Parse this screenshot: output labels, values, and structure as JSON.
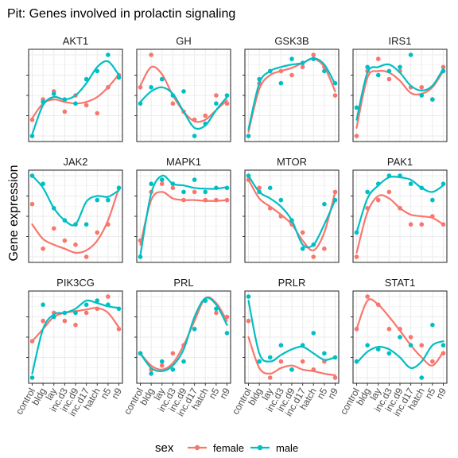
{
  "chart_data": {
    "type": "scatter",
    "title": "Pit: Genes involved in prolactin signaling",
    "xlabel": "",
    "ylabel": "Gene expression",
    "categories": [
      "control",
      "bldg",
      "lay",
      "inc.d3",
      "inc.d9",
      "inc.d17",
      "hatch",
      "n5",
      "n9"
    ],
    "legend": {
      "title": "sex",
      "position": "bottom",
      "entries": [
        {
          "label": "female",
          "color": "#F8766D"
        },
        {
          "label": "male",
          "color": "#00BFC4"
        }
      ]
    },
    "colors": {
      "female": "#F8766D",
      "male": "#00BFC4",
      "panel_border": "#333333",
      "grid": "#ebebeb",
      "strip_bg": "#ffffff"
    },
    "grid": true,
    "y_tick_labels_shown": false,
    "panels": [
      {
        "gene": "AKT1",
        "female": {
          "points": [
            0.2,
            0.45,
            0.55,
            0.3,
            0.5,
            0.38,
            0.28,
            0.6,
            0.75
          ],
          "trend": [
            0.22,
            0.4,
            0.45,
            0.42,
            0.4,
            0.42,
            0.48,
            0.6,
            0.76
          ]
        },
        "male": {
          "points": [
            0.0,
            0.42,
            0.52,
            0.45,
            0.4,
            0.7,
            0.8,
            1.0,
            0.72
          ],
          "trend": [
            0.02,
            0.38,
            0.48,
            0.45,
            0.5,
            0.65,
            0.85,
            0.92,
            0.75
          ]
        }
      },
      {
        "gene": "GH",
        "female": {
          "points": [
            0.6,
            1.0,
            0.7,
            0.4,
            0.3,
            0.2,
            0.25,
            0.5,
            0.4
          ],
          "trend": [
            0.62,
            0.85,
            0.76,
            0.5,
            0.3,
            0.18,
            0.2,
            0.32,
            0.44
          ]
        },
        "male": {
          "points": [
            0.4,
            0.6,
            0.7,
            0.5,
            0.55,
            0.0,
            0.15,
            0.4,
            0.5
          ],
          "trend": [
            0.42,
            0.55,
            0.6,
            0.52,
            0.3,
            0.1,
            0.13,
            0.32,
            0.48
          ]
        }
      },
      {
        "gene": "GSK3B",
        "female": {
          "points": [
            0.0,
            0.65,
            0.8,
            0.8,
            0.75,
            0.85,
            1.0,
            0.85,
            0.5
          ],
          "trend": [
            0.05,
            0.58,
            0.75,
            0.8,
            0.84,
            0.9,
            0.95,
            0.85,
            0.55
          ]
        },
        "male": {
          "points": [
            0.0,
            0.7,
            0.8,
            0.65,
            0.95,
            0.9,
            0.95,
            0.8,
            0.65
          ],
          "trend": [
            0.08,
            0.65,
            0.8,
            0.85,
            0.88,
            0.9,
            0.96,
            0.88,
            0.64
          ]
        }
      },
      {
        "gene": "IRS1",
        "female": {
          "points": [
            0.0,
            0.8,
            0.95,
            0.7,
            0.8,
            0.6,
            0.6,
            0.45,
            0.85
          ],
          "trend": [
            0.1,
            0.72,
            0.8,
            0.78,
            0.68,
            0.53,
            0.52,
            0.6,
            0.8
          ]
        },
        "male": {
          "points": [
            0.35,
            0.85,
            0.75,
            0.8,
            0.85,
            1.0,
            0.5,
            0.45,
            0.8
          ],
          "trend": [
            0.2,
            0.78,
            0.85,
            0.88,
            0.78,
            0.62,
            0.56,
            0.62,
            0.83
          ]
        }
      },
      {
        "gene": "JAK2",
        "female": {
          "points": [
            0.65,
            0.1,
            0.35,
            0.2,
            0.15,
            0.0,
            0.3,
            0.4,
            0.85
          ],
          "trend": [
            0.4,
            0.22,
            0.15,
            0.1,
            0.05,
            0.08,
            0.2,
            0.45,
            0.85
          ]
        },
        "male": {
          "points": [
            1.0,
            0.9,
            0.6,
            0.45,
            0.4,
            0.4,
            0.7,
            0.7,
            0.85
          ],
          "trend": [
            1.0,
            0.85,
            0.6,
            0.45,
            0.4,
            0.68,
            0.75,
            0.74,
            0.82
          ]
        }
      },
      {
        "gene": "MAPK1",
        "female": {
          "points": [
            0.2,
            0.8,
            0.9,
            0.85,
            0.7,
            0.8,
            0.7,
            0.7,
            0.7
          ],
          "trend": [
            0.15,
            0.7,
            0.8,
            0.72,
            0.7,
            0.7,
            0.69,
            0.69,
            0.7
          ]
        },
        "male": {
          "points": [
            0.0,
            0.9,
            0.95,
            0.9,
            0.8,
            0.95,
            0.8,
            0.85,
            0.85
          ],
          "trend": [
            0.02,
            0.78,
            1.0,
            0.9,
            0.88,
            0.85,
            0.84,
            0.84,
            0.86
          ]
        }
      },
      {
        "gene": "MTOR",
        "female": {
          "points": [
            0.95,
            0.85,
            0.6,
            0.5,
            0.4,
            0.3,
            0.0,
            0.1,
            0.8
          ],
          "trend": [
            0.95,
            0.72,
            0.62,
            0.52,
            0.4,
            0.2,
            0.08,
            0.3,
            0.8
          ]
        },
        "male": {
          "points": [
            1.0,
            0.8,
            0.85,
            0.7,
            0.45,
            0.1,
            0.15,
            0.65,
            0.7
          ],
          "trend": [
            1.0,
            0.8,
            0.72,
            0.62,
            0.45,
            0.15,
            0.15,
            0.4,
            0.7
          ]
        }
      },
      {
        "gene": "PAK1",
        "female": {
          "points": [
            0.0,
            0.6,
            0.7,
            0.8,
            0.6,
            0.4,
            0.4,
            0.5,
            0.4
          ],
          "trend": [
            0.05,
            0.55,
            0.75,
            0.72,
            0.6,
            0.52,
            0.5,
            0.48,
            0.4
          ]
        },
        "male": {
          "points": [
            0.3,
            0.8,
            0.9,
            1.0,
            1.0,
            0.9,
            0.85,
            0.7,
            0.9
          ],
          "trend": [
            0.3,
            0.72,
            0.88,
            0.98,
            0.98,
            0.95,
            0.85,
            0.8,
            0.88
          ]
        }
      },
      {
        "gene": "PIK3CG",
        "female": {
          "points": [
            0.45,
            0.7,
            0.8,
            0.7,
            0.65,
            0.8,
            0.85,
            1.0,
            0.6
          ],
          "trend": [
            0.45,
            0.6,
            0.75,
            0.8,
            0.82,
            0.84,
            0.86,
            0.8,
            0.62
          ]
        },
        "male": {
          "points": [
            0.0,
            0.9,
            0.75,
            0.8,
            0.8,
            0.9,
            0.95,
            0.9,
            0.85
          ],
          "trend": [
            0.05,
            0.6,
            0.78,
            0.8,
            0.85,
            0.95,
            0.92,
            0.88,
            0.86
          ]
        }
      },
      {
        "gene": "PRL",
        "female": {
          "points": [
            0.3,
            0.1,
            0.15,
            0.3,
            0.4,
            0.6,
            0.95,
            0.8,
            0.75
          ],
          "trend": [
            0.3,
            0.15,
            0.1,
            0.18,
            0.4,
            0.7,
            0.98,
            0.92,
            0.7
          ]
        },
        "male": {
          "points": [
            0.3,
            0.05,
            0.2,
            0.1,
            0.2,
            0.6,
            0.95,
            0.85,
            0.55
          ],
          "trend": [
            0.3,
            0.12,
            0.08,
            0.15,
            0.35,
            0.75,
            0.98,
            0.9,
            0.65
          ]
        }
      },
      {
        "gene": "PRLR",
        "female": {
          "points": [
            0.7,
            0.2,
            0.0,
            0.2,
            0.1,
            0.2,
            0.1,
            0.2,
            0.0
          ],
          "trend": [
            0.5,
            0.12,
            0.05,
            0.12,
            0.15,
            0.1,
            0.08,
            0.05,
            0.03
          ]
        },
        "male": {
          "points": [
            1.0,
            0.2,
            0.25,
            0.4,
            0.1,
            0.4,
            0.55,
            0.3,
            0.25
          ],
          "trend": [
            0.95,
            0.3,
            0.2,
            0.28,
            0.35,
            0.38,
            0.3,
            0.22,
            0.25
          ]
        }
      },
      {
        "gene": "STAT1",
        "female": {
          "points": [
            0.6,
            1.0,
            0.9,
            0.6,
            0.6,
            0.5,
            0.4,
            0.2,
            0.3
          ],
          "trend": [
            0.6,
            0.95,
            0.9,
            0.75,
            0.58,
            0.4,
            0.25,
            0.15,
            0.32
          ]
        },
        "male": {
          "points": [
            0.2,
            0.4,
            0.35,
            0.3,
            0.5,
            0.4,
            0.0,
            0.65,
            0.4
          ],
          "trend": [
            0.18,
            0.32,
            0.38,
            0.35,
            0.25,
            0.12,
            0.2,
            0.4,
            0.45
          ]
        }
      }
    ]
  }
}
